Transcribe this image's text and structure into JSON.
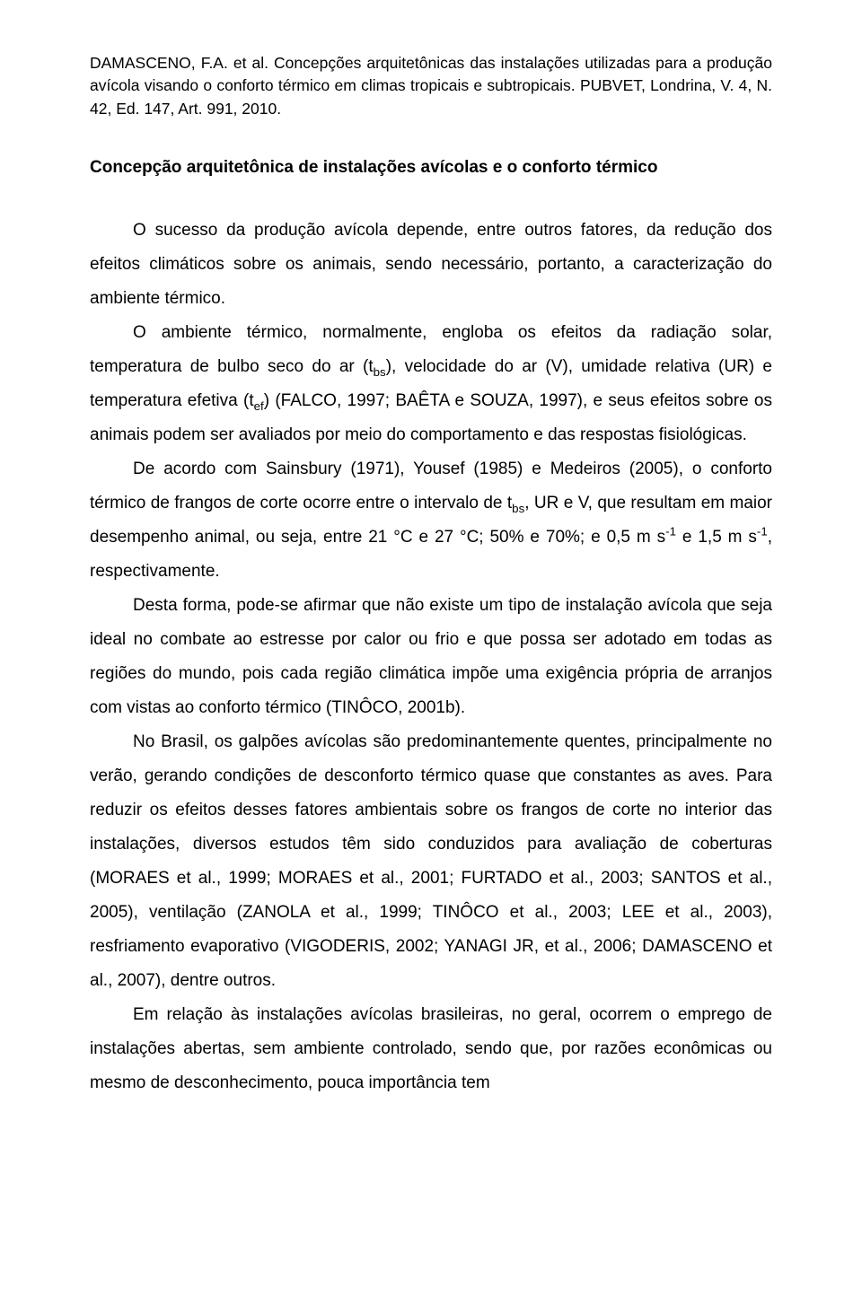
{
  "header": {
    "text": "DAMASCENO, F.A. et al. Concepções arquitetônicas das instalações utilizadas para a produção avícola visando o conforto térmico em climas tropicais e subtropicais. PUBVET, Londrina, V. 4, N. 42, Ed. 147, Art. 991, 2010."
  },
  "section": {
    "title": "Concepção arquitetônica de instalações avícolas e o conforto térmico"
  },
  "paragraphs": {
    "p1": "O sucesso da produção avícola depende, entre outros fatores, da redução dos efeitos climáticos sobre os animais, sendo necessário, portanto, a caracterização do ambiente térmico.",
    "p2_a": "O ambiente térmico, normalmente, engloba os efeitos da radiação solar, temperatura de bulbo seco do ar (t",
    "p2_sub1": "bs",
    "p2_b": "), velocidade do ar (V), umidade relativa (UR) e temperatura efetiva (t",
    "p2_sub2": "ef",
    "p2_c": ") (FALCO, 1997; BAÊTA e SOUZA, 1997), e seus efeitos sobre os animais podem ser avaliados por meio do comportamento e das respostas fisiológicas.",
    "p3_a": "De acordo com Sainsbury (1971), Yousef (1985) e Medeiros (2005), o conforto térmico de frangos de corte ocorre entre o intervalo de t",
    "p3_sub1": "bs",
    "p3_b": ", UR e V, que resultam em maior desempenho animal, ou seja, entre 21 °C e 27 °C; 50% e 70%; e 0,5 m s",
    "p3_sup1": "-1",
    "p3_c": " e 1,5 m s",
    "p3_sup2": "-1",
    "p3_d": ", respectivamente.",
    "p4": "Desta forma, pode-se afirmar que não existe um tipo de instalação avícola que seja ideal no combate ao estresse por calor ou frio e que possa ser adotado em todas as regiões do mundo, pois cada região climática impõe uma exigência própria de arranjos com vistas ao conforto térmico (TINÔCO, 2001b).",
    "p5": "No Brasil, os galpões avícolas são predominantemente quentes, principalmente no verão, gerando condições de desconforto térmico quase que constantes as aves. Para reduzir os efeitos desses fatores ambientais sobre os frangos de corte no interior das instalações, diversos estudos têm sido conduzidos para avaliação de coberturas (MORAES et al., 1999; MORAES et al., 2001; FURTADO et al., 2003; SANTOS et al., 2005), ventilação (ZANOLA et al., 1999; TINÔCO et al., 2003; LEE et al., 2003), resfriamento evaporativo (VIGODERIS, 2002; YANAGI JR, et al., 2006; DAMASCENO et al., 2007), dentre outros.",
    "p6": "Em relação às instalações avícolas brasileiras, no geral, ocorrem o emprego de instalações abertas, sem ambiente controlado, sendo que, por razões econômicas ou mesmo de desconhecimento, pouca importância tem"
  }
}
